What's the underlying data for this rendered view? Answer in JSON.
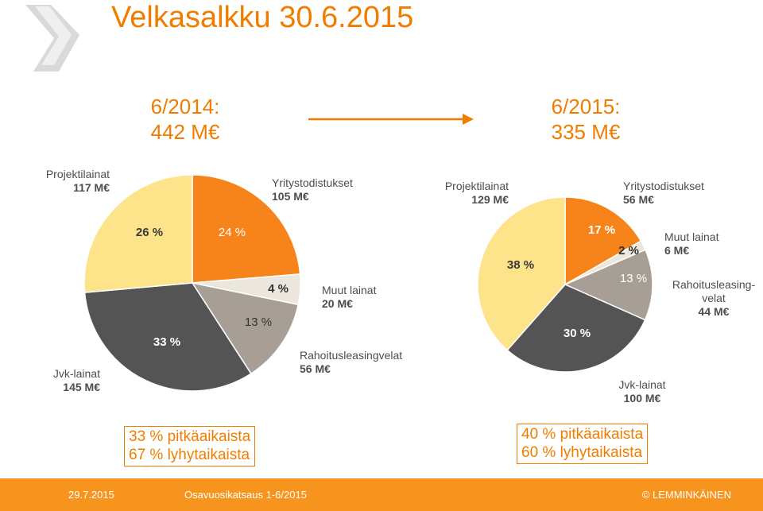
{
  "title": "Velkasalkku 30.6.2015",
  "heading_2014": {
    "line1": "6/2014:",
    "line2": "442 M€"
  },
  "heading_2015": {
    "line1": "6/2015:",
    "line2": "335 M€"
  },
  "colors": {
    "orange": "#f7841a",
    "light_yellow": "#fde38a",
    "dark_grey": "#545454",
    "mid_grey": "#a79f96",
    "light_beige": "#ece7dd",
    "text_orange": "#f07d00"
  },
  "chart_data": [
    {
      "type": "pie",
      "title": "6/2014: 442 M€",
      "series": [
        {
          "name": "Yritystodistukset",
          "value_text": "105 M€",
          "value": 105,
          "percent": 24,
          "percent_label": "24 %",
          "color": "#f7841a"
        },
        {
          "name": "Muut lainat",
          "value_text": "20 M€",
          "value": 20,
          "percent": 4,
          "percent_label": "4 %",
          "color": "#ece7dd"
        },
        {
          "name": "Rahoitusleasingvelat",
          "value_text": "56 M€",
          "value": 56,
          "percent": 13,
          "percent_label": "13 %",
          "color": "#a79f96"
        },
        {
          "name": "Jvk-lainat",
          "value_text": "145 M€",
          "value": 145,
          "percent": 33,
          "percent_label": "33 %",
          "color": "#545454"
        },
        {
          "name": "Projektilainat",
          "value_text": "117 M€",
          "value": 117,
          "percent": 26,
          "percent_label": "26 %",
          "color": "#fde38a"
        }
      ]
    },
    {
      "type": "pie",
      "title": "6/2015: 335 M€",
      "series": [
        {
          "name": "Yritystodistukset",
          "value_text": "56 M€",
          "value": 56,
          "percent": 17,
          "percent_label": "17 %",
          "color": "#f7841a"
        },
        {
          "name": "Muut lainat",
          "value_text": "6 M€",
          "value": 6,
          "percent": 2,
          "percent_label": "2 %",
          "color": "#ece7dd"
        },
        {
          "name": "Rahoitusleasing-velat",
          "value_text": "44 M€",
          "value": 44,
          "percent": 13,
          "percent_label": "13 %",
          "color": "#a79f96"
        },
        {
          "name": "Jvk-lainat",
          "value_text": "100  M€",
          "value": 100,
          "percent": 30,
          "percent_label": "30 %",
          "color": "#545454"
        },
        {
          "name": "Projektilainat",
          "value_text": "129 M€",
          "value": 129,
          "percent": 38,
          "percent_label": "38 %",
          "color": "#fde38a"
        }
      ]
    }
  ],
  "labels_2014": {
    "projektilainat": {
      "name": "Projektilainat",
      "value": "117 M€"
    },
    "yritystodistukset": {
      "name": "Yritystodistukset",
      "value": "105 M€"
    },
    "muut_lainat": {
      "name": "Muut lainat",
      "value": "20 M€"
    },
    "rahoitusleasing": {
      "name": "Rahoitusleasingvelat",
      "value": "56 M€"
    },
    "jvk_lainat": {
      "name": "Jvk-lainat",
      "value": "145 M€"
    }
  },
  "labels_2015": {
    "projektilainat": {
      "name": "Projektilainat",
      "value": "129 M€"
    },
    "yritystodistukset": {
      "name": "Yritystodistukset",
      "value": "56 M€"
    },
    "muut_lainat": {
      "name": "Muut lainat",
      "value": "6 M€"
    },
    "rahoitusleasing": {
      "line1": "Rahoitusleasing-",
      "line2": "velat",
      "value": "44 M€"
    },
    "jvk_lainat": {
      "name": "Jvk-lainat",
      "value": "100  M€"
    }
  },
  "maturity_2014": {
    "long": "33 % pitkäaikaista",
    "short": "67 % lyhytaikaista"
  },
  "maturity_2015": {
    "long": "40 % pitkäaikaista",
    "short": "60 % lyhytaikaista"
  },
  "footer": {
    "date": "29.7.2015",
    "report": "Osavuosikatsaus 1-6/2015",
    "copyright": "© LEMMINKÄINEN"
  }
}
